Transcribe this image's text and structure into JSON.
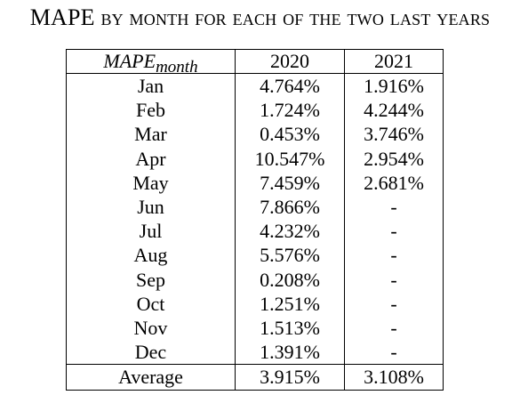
{
  "caption": "MAPE by month for each of the two last years",
  "table": {
    "header": {
      "metric_base": "MAPE",
      "metric_subscript": "month",
      "col_2020": "2020",
      "col_2021": "2021"
    },
    "rows": [
      {
        "month": "Jan",
        "y2020": "4.764%",
        "y2021": "1.916%"
      },
      {
        "month": "Feb",
        "y2020": "1.724%",
        "y2021": "4.244%"
      },
      {
        "month": "Mar",
        "y2020": "0.453%",
        "y2021": "3.746%"
      },
      {
        "month": "Apr",
        "y2020": "10.547%",
        "y2021": "2.954%"
      },
      {
        "month": "May",
        "y2020": "7.459%",
        "y2021": "2.681%"
      },
      {
        "month": "Jun",
        "y2020": "7.866%",
        "y2021": "-"
      },
      {
        "month": "Jul",
        "y2020": "4.232%",
        "y2021": "-"
      },
      {
        "month": "Aug",
        "y2020": "5.576%",
        "y2021": "-"
      },
      {
        "month": "Sep",
        "y2020": "0.208%",
        "y2021": "-"
      },
      {
        "month": "Oct",
        "y2020": "1.251%",
        "y2021": "-"
      },
      {
        "month": "Nov",
        "y2020": "1.513%",
        "y2021": "-"
      },
      {
        "month": "Dec",
        "y2020": "1.391%",
        "y2021": "-"
      }
    ],
    "average": {
      "label": "Average",
      "y2020": "3.915%",
      "y2021": "3.108%"
    }
  }
}
